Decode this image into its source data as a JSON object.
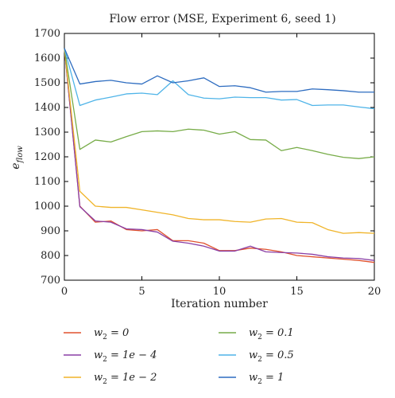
{
  "chart_data": {
    "type": "line",
    "title": "Flow error (MSE, Experiment 6, seed 1)",
    "xlabel": "Iteration number",
    "ylabel_main": "e",
    "ylabel_sub": "flow",
    "xlim": [
      0,
      20
    ],
    "ylim": [
      700,
      1700
    ],
    "xticks": [
      0,
      5,
      10,
      15,
      20
    ],
    "yticks": [
      700,
      800,
      900,
      1000,
      1100,
      1200,
      1300,
      1400,
      1500,
      1600,
      1700
    ],
    "grid": false,
    "legend_placement": "below",
    "x": [
      0,
      1,
      2,
      3,
      4,
      5,
      6,
      7,
      8,
      9,
      10,
      11,
      12,
      13,
      14,
      15,
      16,
      17,
      18,
      19,
      20
    ],
    "series": [
      {
        "name": "w2 = 0",
        "label_main": "w",
        "label_sub": "2",
        "label_rest": " = 0",
        "color": "#e0522e",
        "values": [
          1640,
          1000,
          935,
          940,
          905,
          900,
          905,
          860,
          860,
          850,
          820,
          820,
          830,
          825,
          815,
          800,
          795,
          790,
          785,
          780,
          772
        ]
      },
      {
        "name": "w2 = 1e − 4",
        "label_main": "w",
        "label_sub": "2",
        "label_rest": " = 1e − 4",
        "color": "#8a3fa5",
        "values": [
          1640,
          998,
          940,
          935,
          908,
          905,
          895,
          858,
          850,
          838,
          818,
          818,
          838,
          815,
          812,
          810,
          805,
          795,
          790,
          788,
          780
        ]
      },
      {
        "name": "w2 = 1e − 2",
        "label_main": "w",
        "label_sub": "2",
        "label_rest": " = 1e − 2",
        "color": "#f0b429",
        "values": [
          1640,
          1060,
          1000,
          995,
          995,
          985,
          975,
          965,
          950,
          945,
          945,
          938,
          935,
          948,
          950,
          935,
          933,
          905,
          890,
          893,
          890
        ]
      },
      {
        "name": "w2 = 0.1",
        "label_main": "w",
        "label_sub": "2",
        "label_rest": " = 0.1",
        "color": "#77ac48",
        "values": [
          1640,
          1230,
          1268,
          1260,
          1282,
          1302,
          1305,
          1302,
          1312,
          1308,
          1292,
          1302,
          1270,
          1268,
          1225,
          1238,
          1225,
          1210,
          1198,
          1193,
          1200
        ]
      },
      {
        "name": "w2 = 0.5",
        "label_main": "w",
        "label_sub": "2",
        "label_rest": " = 0.5",
        "color": "#4fb4e8",
        "values": [
          1640,
          1408,
          1430,
          1442,
          1455,
          1458,
          1452,
          1508,
          1452,
          1438,
          1435,
          1442,
          1440,
          1440,
          1430,
          1432,
          1408,
          1410,
          1410,
          1402,
          1395
        ]
      },
      {
        "name": "w2 = 1",
        "label_main": "w",
        "label_sub": "2",
        "label_rest": " = 1",
        "color": "#2d6cc0",
        "values": [
          1640,
          1495,
          1505,
          1510,
          1500,
          1495,
          1528,
          1500,
          1508,
          1520,
          1485,
          1488,
          1480,
          1462,
          1465,
          1465,
          1475,
          1472,
          1468,
          1462,
          1462
        ]
      }
    ]
  }
}
